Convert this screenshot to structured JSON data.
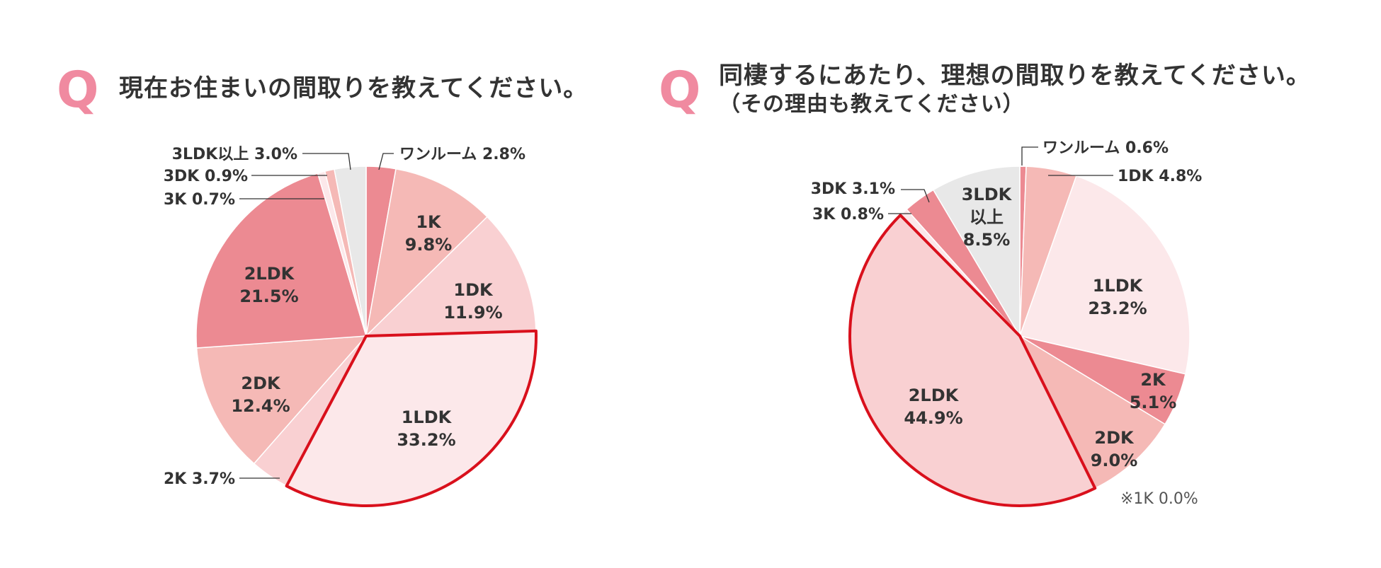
{
  "colors": {
    "accent_q": "#f08aa0",
    "highlight_border": "#d9101c",
    "leader_line": "#333333"
  },
  "left": {
    "q_mark": "Q",
    "question": "現在お住まいの間取りを教えてください。"
  },
  "right": {
    "q_mark": "Q",
    "question_line1": "同棲するにあたり、理想の間取りを教えてください。",
    "question_line2": "（その理由も教えてください）",
    "note": "※1K 0.0%"
  },
  "chart_data": [
    {
      "type": "pie",
      "title": "現在お住まいの間取りを教えてください。",
      "start": "12 o'clock",
      "direction": "clockwise",
      "highlighted": "1LDK",
      "slices": [
        {
          "key": "oneroom",
          "name": "ワンルーム",
          "value": 2.8,
          "pct": "2.8%",
          "color": "#ec8a92",
          "outside": true,
          "label": "ワンルーム 2.8%"
        },
        {
          "key": "1k",
          "name": "1K",
          "value": 9.8,
          "pct": "9.8%",
          "color": "#f5b9b6",
          "outside": false
        },
        {
          "key": "1dk",
          "name": "1DK",
          "value": 11.9,
          "pct": "11.9%",
          "color": "#f9d0d2",
          "outside": false
        },
        {
          "key": "1ldk",
          "name": "1LDK",
          "value": 33.2,
          "pct": "33.2%",
          "color": "#fce8ea",
          "outside": false,
          "highlight": true
        },
        {
          "key": "2k",
          "name": "2K",
          "value": 3.7,
          "pct": "3.7%",
          "color": "#f9d0d2",
          "outside": true,
          "label": "2K 3.7%"
        },
        {
          "key": "2dk",
          "name": "2DK",
          "value": 12.4,
          "pct": "12.4%",
          "color": "#f5b9b6",
          "outside": false
        },
        {
          "key": "2ldk",
          "name": "2LDK",
          "value": 21.5,
          "pct": "21.5%",
          "color": "#ec8a92",
          "outside": false
        },
        {
          "key": "3k",
          "name": "3K",
          "value": 0.7,
          "pct": "0.7%",
          "color": "#fce8ea",
          "outside": true,
          "label": "3K 0.7%"
        },
        {
          "key": "3dk",
          "name": "3DK",
          "value": 0.9,
          "pct": "0.9%",
          "color": "#f5b9b6",
          "outside": true,
          "label": "3DK 0.9%"
        },
        {
          "key": "3ldk",
          "name": "3LDK以上",
          "value": 3.0,
          "pct": "3.0%",
          "color": "#e8e8e8",
          "outside": true,
          "label": "3LDK以上 3.0%"
        }
      ]
    },
    {
      "type": "pie",
      "title": "同棲するにあたり、理想の間取りを教えてください。",
      "start": "12 o'clock",
      "direction": "clockwise",
      "highlighted": "2LDK",
      "slices": [
        {
          "key": "oneroom",
          "name": "ワンルーム",
          "value": 0.6,
          "pct": "0.6%",
          "color": "#ec8a92",
          "outside": true,
          "label": "ワンルーム 0.6%"
        },
        {
          "key": "1dk",
          "name": "1DK",
          "value": 4.8,
          "pct": "4.8%",
          "color": "#f5b9b6",
          "outside": true,
          "label": "1DK 4.8%"
        },
        {
          "key": "1ldk",
          "name": "1LDK",
          "value": 23.2,
          "pct": "23.2%",
          "color": "#fce8ea",
          "outside": false
        },
        {
          "key": "2k",
          "name": "2K",
          "value": 5.1,
          "pct": "5.1%",
          "color": "#ec8a92",
          "outside": false
        },
        {
          "key": "2dk",
          "name": "2DK",
          "value": 9.0,
          "pct": "9.0%",
          "color": "#f5b9b6",
          "outside": false
        },
        {
          "key": "2ldk",
          "name": "2LDK",
          "value": 44.9,
          "pct": "44.9%",
          "color": "#f9d0d2",
          "outside": false,
          "highlight": true
        },
        {
          "key": "3k",
          "name": "3K",
          "value": 0.8,
          "pct": "0.8%",
          "color": "#fce8ea",
          "outside": true,
          "label": "3K 0.8%"
        },
        {
          "key": "3dk",
          "name": "3DK",
          "value": 3.1,
          "pct": "3.1%",
          "color": "#ec8a92",
          "outside": true,
          "label": "3DK 3.1%"
        },
        {
          "key": "3ldk",
          "name": "3LDK",
          "line2": "以上",
          "value": 8.5,
          "pct": "8.5%",
          "color": "#e8e8e8",
          "outside": false
        }
      ]
    }
  ]
}
